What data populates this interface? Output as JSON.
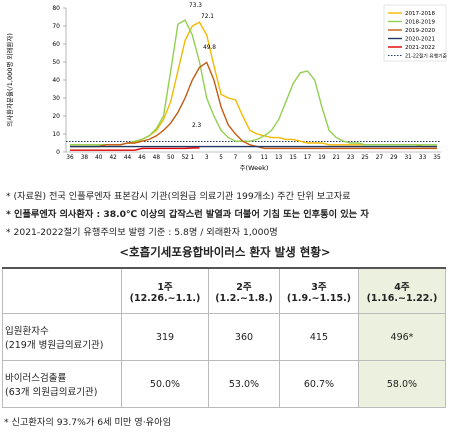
{
  "chart_data": {
    "type": "line",
    "y_axis_label": "의사환자분율(/1,000명 외래환자)",
    "x_axis_label": "주(Week)",
    "categories": [
      "36",
      null,
      "38",
      null,
      "40",
      null,
      "42",
      null,
      "44",
      null,
      "46",
      null,
      "48",
      null,
      "50",
      null,
      "52",
      "1",
      null,
      "3",
      null,
      "5",
      null,
      "7",
      null,
      "9",
      null,
      "11",
      null,
      "13",
      null,
      "15",
      null,
      "17",
      null,
      "19",
      null,
      "21",
      null,
      "23",
      null,
      "25",
      null,
      "27",
      null,
      "29",
      null,
      "31",
      null,
      "33",
      null,
      "35"
    ],
    "ylim": [
      0,
      80
    ],
    "yticks": [
      0,
      10,
      20,
      30,
      40,
      50,
      60,
      70,
      80
    ],
    "series": [
      {
        "name": "2017-2018",
        "color": "#f5b800",
        "values": [
          4,
          4,
          4,
          4,
          4,
          4,
          4,
          4,
          5,
          5,
          7,
          9,
          12,
          18,
          28,
          45,
          62,
          70,
          72.1,
          65,
          48,
          32,
          30,
          29,
          20,
          12,
          10,
          9,
          8,
          8,
          7,
          7,
          6,
          5,
          5,
          5,
          4,
          4,
          4,
          4,
          4,
          4,
          4,
          4,
          4,
          4,
          4,
          4,
          4,
          3,
          3,
          3
        ]
      },
      {
        "name": "2018-2019",
        "color": "#92d050",
        "values": [
          4,
          4,
          4,
          4,
          4,
          4,
          4,
          4,
          5,
          6,
          7,
          9,
          13,
          20,
          45,
          71,
          73.3,
          65,
          50,
          30,
          20,
          12,
          8,
          6,
          6,
          6,
          7,
          9,
          12,
          18,
          28,
          38,
          44,
          45,
          40,
          25,
          12,
          8,
          6,
          5,
          5,
          4,
          4,
          4,
          4,
          4,
          4,
          4,
          4,
          4,
          4,
          4
        ]
      },
      {
        "name": "2019-2020",
        "color": "#c55a11",
        "values": [
          3,
          3,
          3,
          3,
          3,
          4,
          4,
          4,
          5,
          5,
          6,
          7,
          9,
          12,
          16,
          22,
          30,
          40,
          47,
          49.8,
          40,
          25,
          15,
          10,
          6,
          4,
          3,
          2,
          2,
          2,
          2,
          2,
          2,
          2,
          2,
          2,
          2,
          2,
          2,
          2,
          2,
          2,
          2,
          2,
          2,
          2,
          2,
          2,
          2,
          2,
          2,
          2
        ]
      },
      {
        "name": "2020-2021",
        "color": "#1f3864",
        "values": [
          3,
          3,
          3,
          3,
          3,
          3,
          3,
          3,
          3,
          3,
          3,
          3,
          3,
          3,
          3,
          3,
          3,
          3,
          3,
          3,
          3,
          3,
          3,
          3,
          3,
          3,
          3,
          3,
          3,
          3,
          3,
          3,
          3,
          3,
          3,
          3,
          3,
          3,
          3,
          3,
          3,
          3,
          3,
          3,
          3,
          3,
          3,
          3,
          3,
          3,
          3,
          3
        ]
      },
      {
        "name": "2021-2022",
        "color": "#e00000",
        "values": [
          1,
          1,
          1,
          1,
          1,
          1,
          1,
          1,
          1,
          1,
          2,
          2,
          2,
          2,
          2,
          2,
          2,
          2.2,
          2.3,
          null,
          null,
          null,
          null,
          null,
          null,
          null,
          null,
          null,
          null,
          null,
          null,
          null,
          null,
          null,
          null,
          null,
          null,
          null,
          null,
          null,
          null,
          null,
          null,
          null,
          null,
          null,
          null,
          null,
          null,
          null,
          null,
          null
        ]
      }
    ],
    "threshold": {
      "name": "21-22절기 유행기준",
      "value": 5.8,
      "color": "#1f3864"
    },
    "annotations": [
      "73.3",
      "72.1",
      "49.8",
      "2.3"
    ]
  },
  "notes": [
    "* (자료원) 전국 인플루엔자 표본감시 기관(의원급 의료기관 199개소) 주간 단위 보고자료",
    "* 인플루엔자 의사환자 : 38.0℃ 이상의 갑작스런 발열과 더불어 기침 또는 인후통이 있는 자",
    "* 2021-2022절기 유행주의보 발령 기준 : 5.8명 / 외래환자 1,000명"
  ],
  "table": {
    "title": "<호흡기세포융합바이러스 환자 발생 현황>",
    "header": [
      [
        "1주",
        "(12.26.~1.1.)"
      ],
      [
        "2주",
        "(1.2.~1.8.)"
      ],
      [
        "3주",
        "(1.9.~1.15.)"
      ],
      [
        "4주",
        "(1.16.~1.22.)"
      ]
    ],
    "rows": [
      {
        "label": [
          "입원환자수",
          "(219개 병원급의료기관)"
        ],
        "cells": [
          "319",
          "360",
          "415",
          "496*"
        ]
      },
      {
        "label": [
          "바이러스검출률",
          "(63개 의원급의료기관)"
        ],
        "cells": [
          "50.0%",
          "53.0%",
          "60.7%",
          "58.0%"
        ]
      }
    ]
  },
  "footnote": "* 신고환자의 93.7%가 6세 미만 영·유아임"
}
